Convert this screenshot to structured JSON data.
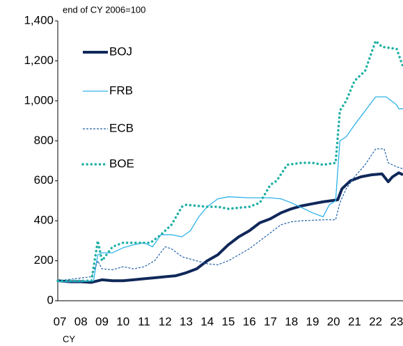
{
  "chart_data": {
    "type": "line",
    "subtitle": "end of CY 2006=100",
    "x_label": "CY",
    "xlim": [
      2006.9,
      2023.3
    ],
    "xticks": [
      {
        "value": 2007,
        "label": "07"
      },
      {
        "value": 2008,
        "label": "08"
      },
      {
        "value": 2009,
        "label": "09"
      },
      {
        "value": 2010,
        "label": "10"
      },
      {
        "value": 2011,
        "label": "11"
      },
      {
        "value": 2012,
        "label": "12"
      },
      {
        "value": 2013,
        "label": "13"
      },
      {
        "value": 2014,
        "label": "14"
      },
      {
        "value": 2015,
        "label": "15"
      },
      {
        "value": 2016,
        "label": "16"
      },
      {
        "value": 2017,
        "label": "17"
      },
      {
        "value": 2018,
        "label": "18"
      },
      {
        "value": 2019,
        "label": "19"
      },
      {
        "value": 2020,
        "label": "20"
      },
      {
        "value": 2021,
        "label": "21"
      },
      {
        "value": 2022,
        "label": "22"
      },
      {
        "value": 2023,
        "label": "23"
      }
    ],
    "ylim": [
      0,
      1400
    ],
    "yticks": [
      0,
      200,
      400,
      600,
      800,
      {
        "value": 1000,
        "label": "1,000"
      },
      {
        "value": 1200,
        "label": "1,200"
      },
      {
        "value": 1400,
        "label": "1,400"
      }
    ],
    "grid": false,
    "series": [
      {
        "name": "BOJ",
        "color": "#10285a",
        "style": "thick",
        "x": [
          2006.9,
          2007.5,
          2008.0,
          2008.5,
          2009.0,
          2009.5,
          2010.0,
          2010.5,
          2011.0,
          2011.5,
          2012.0,
          2012.5,
          2013.0,
          2013.5,
          2014.0,
          2014.5,
          2015.0,
          2015.5,
          2016.0,
          2016.5,
          2017.0,
          2017.5,
          2018.0,
          2018.5,
          2019.0,
          2019.5,
          2020.2,
          2020.4,
          2020.8,
          2021.3,
          2021.8,
          2022.3,
          2022.6,
          2022.8,
          2023.1,
          2023.3
        ],
        "values": [
          100,
          95,
          95,
          92,
          105,
          100,
          100,
          105,
          110,
          115,
          120,
          125,
          140,
          160,
          200,
          230,
          280,
          320,
          350,
          390,
          410,
          440,
          460,
          475,
          485,
          495,
          505,
          560,
          600,
          620,
          630,
          635,
          595,
          620,
          640,
          630
        ]
      },
      {
        "name": "FRB",
        "color": "#2cb3e8",
        "style": "thin",
        "x": [
          2006.9,
          2008.0,
          2008.6,
          2008.8,
          2009.0,
          2009.5,
          2010.0,
          2010.5,
          2011.0,
          2011.4,
          2011.8,
          2012.3,
          2012.8,
          2013.2,
          2013.6,
          2014.0,
          2014.5,
          2015.0,
          2016.0,
          2017.0,
          2017.5,
          2018.0,
          2019.0,
          2019.5,
          2019.8,
          2020.1,
          2020.3,
          2020.6,
          2021.0,
          2021.5,
          2022.0,
          2022.5,
          2023.0,
          2023.1,
          2023.3
        ],
        "values": [
          95,
          95,
          100,
          230,
          240,
          240,
          265,
          280,
          290,
          270,
          330,
          330,
          320,
          350,
          420,
          470,
          510,
          520,
          515,
          515,
          510,
          490,
          440,
          420,
          480,
          500,
          800,
          820,
          880,
          950,
          1020,
          1020,
          980,
          960,
          960
        ]
      },
      {
        "name": "ECB",
        "color": "#1f5fa8",
        "style": "dashed",
        "x": [
          2006.9,
          2008.5,
          2008.8,
          2009.0,
          2009.5,
          2010.0,
          2010.5,
          2011.0,
          2011.5,
          2012.0,
          2012.3,
          2012.8,
          2013.5,
          2014.0,
          2014.5,
          2015.0,
          2015.5,
          2016.0,
          2016.5,
          2017.0,
          2017.5,
          2018.0,
          2018.5,
          2019.5,
          2020.1,
          2020.3,
          2020.6,
          2021.0,
          2021.5,
          2022.0,
          2022.4,
          2022.6,
          2023.0,
          2023.3
        ],
        "values": [
          100,
          120,
          200,
          160,
          155,
          170,
          160,
          170,
          200,
          270,
          260,
          220,
          200,
          185,
          180,
          200,
          230,
          260,
          300,
          340,
          380,
          395,
          400,
          405,
          405,
          490,
          560,
          620,
          680,
          760,
          760,
          690,
          670,
          660
        ]
      },
      {
        "name": "BOE",
        "color": "#1fb0a5",
        "style": "dotted",
        "x": [
          2006.9,
          2008.5,
          2008.8,
          2009.0,
          2009.5,
          2010.0,
          2011.0,
          2011.3,
          2011.8,
          2012.3,
          2012.8,
          2013.0,
          2014.0,
          2014.5,
          2015.0,
          2016.0,
          2016.5,
          2017.0,
          2017.3,
          2017.8,
          2018.5,
          2019.0,
          2019.5,
          2020.1,
          2020.3,
          2020.6,
          2021.0,
          2021.5,
          2022.0,
          2022.3,
          2023.0,
          2023.3
        ],
        "values": [
          100,
          100,
          300,
          200,
          270,
          290,
          290,
          290,
          330,
          380,
          470,
          480,
          470,
          470,
          460,
          470,
          490,
          580,
          600,
          680,
          690,
          690,
          680,
          690,
          950,
          1000,
          1100,
          1150,
          1300,
          1270,
          1260,
          1170
        ]
      }
    ]
  }
}
